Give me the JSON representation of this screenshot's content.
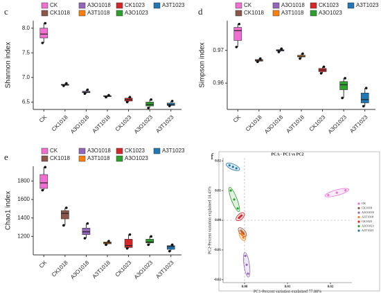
{
  "chart_data": [
    {
      "type": "box",
      "panel": "c",
      "ylabel": "Shannon index",
      "categories": [
        "CK",
        "CK1018",
        "A3O1018",
        "A3T1018",
        "CK1023",
        "A3O1023",
        "A3T1023"
      ],
      "colors": [
        "#f06fd0",
        "#8c564b",
        "#9467bd",
        "#ff7f0e",
        "#d62728",
        "#2ca02c",
        "#1f77b4"
      ],
      "min": [
        7.7,
        6.83,
        6.67,
        6.6,
        6.5,
        6.38,
        6.42
      ],
      "q1": [
        7.8,
        6.84,
        6.69,
        6.61,
        6.52,
        6.42,
        6.43
      ],
      "median": [
        7.88,
        6.85,
        6.7,
        6.62,
        6.55,
        6.45,
        6.45
      ],
      "q3": [
        8.0,
        6.86,
        6.72,
        6.63,
        6.58,
        6.5,
        6.48
      ],
      "max": [
        8.1,
        6.88,
        6.75,
        6.64,
        6.6,
        6.55,
        6.52
      ],
      "ylim": [
        6.35,
        8.15
      ],
      "yticks": [
        6.5,
        {
          "value": 7,
          "label": "7.0"
        },
        7.5,
        {
          "value": 8,
          "label": "8.0"
        }
      ]
    },
    {
      "type": "box",
      "panel": "d",
      "ylabel": "Simpson index",
      "categories": [
        "CK",
        "CK1018",
        "A3O1018",
        "A3T1018",
        "CK1023",
        "A3O1023",
        "A3T1023"
      ],
      "colors": [
        "#f06fd0",
        "#8c564b",
        "#9467bd",
        "#ff7f0e",
        "#d62728",
        "#2ca02c",
        "#1f77b4"
      ],
      "min": [
        0.971,
        0.9665,
        0.9695,
        0.9675,
        0.963,
        0.9555,
        0.953
      ],
      "q1": [
        0.973,
        0.9667,
        0.9698,
        0.968,
        0.9635,
        0.958,
        0.954
      ],
      "median": [
        0.976,
        0.967,
        0.97,
        0.9682,
        0.964,
        0.9595,
        0.955
      ],
      "q3": [
        0.977,
        0.9672,
        0.9702,
        0.9685,
        0.9645,
        0.9605,
        0.957
      ],
      "max": [
        0.978,
        0.9675,
        0.9705,
        0.969,
        0.965,
        0.9615,
        0.9585
      ],
      "ylim": [
        0.952,
        0.979
      ],
      "yticks": [
        0.96,
        0.97
      ]
    },
    {
      "type": "box",
      "panel": "e",
      "ylabel": "Chao1 index",
      "categories": [
        "CK",
        "CK1018",
        "A3O1018",
        "A3T1018",
        "CK1023",
        "A3O1023",
        "A3T1023"
      ],
      "colors": [
        "#f06fd0",
        "#8c564b",
        "#9467bd",
        "#ff7f0e",
        "#d62728",
        "#2ca02c",
        "#1f77b4"
      ],
      "min": [
        1700,
        1320,
        1180,
        1110,
        1070,
        1110,
        1040
      ],
      "q1": [
        1720,
        1390,
        1220,
        1120,
        1080,
        1130,
        1060
      ],
      "median": [
        1780,
        1450,
        1250,
        1130,
        1100,
        1140,
        1090
      ],
      "q3": [
        1870,
        1480,
        1290,
        1140,
        1170,
        1170,
        1100
      ],
      "max": [
        1950,
        1510,
        1340,
        1150,
        1220,
        1200,
        1110
      ],
      "ylim": [
        1000,
        1960
      ],
      "yticks": [
        1200,
        1400,
        1600,
        1800
      ]
    },
    {
      "type": "scatter",
      "panel": "f",
      "title": "PCA - PC1 vs PC2",
      "xlabel": "PC1-Percent variation explained 77.88%",
      "ylabel": "PC2-Percent variation explained 14.43%",
      "series": [
        {
          "name": "CK",
          "color": "#f06fd0",
          "x": [
            0.0195,
            0.0215,
            0.0235
          ],
          "y": [
            0.0085,
            0.0093,
            0.0101
          ]
        },
        {
          "name": "CK1018",
          "color": "#8c564b",
          "x": [
            -0.0008,
            -0.0005,
            -0.0002
          ],
          "y": [
            -0.0035,
            -0.004,
            -0.0045
          ]
        },
        {
          "name": "A3O1018",
          "color": "#9467bd",
          "x": [
            0.0002,
            0.0005,
            0.0008
          ],
          "y": [
            -0.012,
            -0.015,
            -0.018
          ]
        },
        {
          "name": "A3T1018",
          "color": "#ff7f0e",
          "x": [
            -0.0007,
            -0.0005,
            -0.0003
          ],
          "y": [
            -0.0045,
            -0.005,
            -0.0058
          ]
        },
        {
          "name": "CK1023",
          "color": "#d62728",
          "x": [
            -0.0013,
            -0.001,
            -0.0007
          ],
          "y": [
            0.0008,
            0.0012,
            0.0016
          ]
        },
        {
          "name": "A3O1023",
          "color": "#2ca02c",
          "x": [
            -0.0032,
            -0.0024,
            -0.0016
          ],
          "y": [
            0.01,
            0.007,
            0.004
          ]
        },
        {
          "name": "A3T1023",
          "color": "#1f77b4",
          "x": [
            -0.0035,
            -0.0027,
            -0.0019
          ],
          "y": [
            0.0185,
            0.018,
            0.0175
          ]
        }
      ],
      "xlim": [
        -0.005,
        0.025
      ],
      "ylim": [
        -0.021,
        0.021
      ],
      "xticks": [
        {
          "value": 0,
          "label": "0.00"
        },
        0.01,
        0.02
      ],
      "yticks": [
        -0.02,
        -0.01,
        {
          "value": 0,
          "label": "0.00"
        },
        0.01,
        0.02
      ]
    }
  ]
}
